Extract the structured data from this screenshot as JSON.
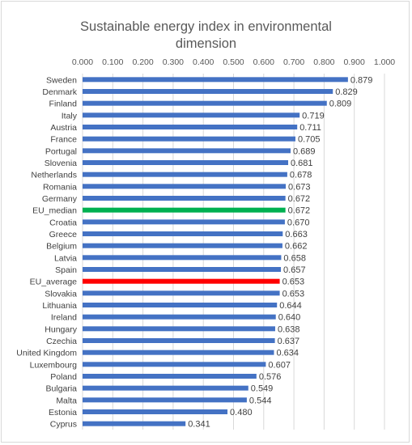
{
  "chart_data": {
    "type": "bar",
    "orientation": "horizontal",
    "title_lines": [
      "Sustainable energy index in environmental",
      "dimension"
    ],
    "x_axis_position": "top",
    "xlim": [
      0,
      1
    ],
    "x_ticks": [
      "0.000",
      "0.100",
      "0.200",
      "0.300",
      "0.400",
      "0.500",
      "0.600",
      "0.700",
      "0.800",
      "0.900",
      "1.000"
    ],
    "grid": true,
    "legend": "none",
    "colors": {
      "default": "#4472c4",
      "EU_median": "#00b050",
      "EU_average": "#ff0000"
    },
    "categories": [
      "Sweden",
      "Denmark",
      "Finland",
      "Italy",
      "Austria",
      "France",
      "Portugal",
      "Slovenia",
      "Netherlands",
      "Romania",
      "Germany",
      "EU_median",
      "Croatia",
      "Greece",
      "Belgium",
      "Latvia",
      "Spain",
      "EU_average",
      "Slovakia",
      "Lithuania",
      "Ireland",
      "Hungary",
      "Czechia",
      "United Kingdom",
      "Luxembourg",
      "Poland",
      "Bulgaria",
      "Malta",
      "Estonia",
      "Cyprus"
    ],
    "values": [
      0.879,
      0.829,
      0.809,
      0.719,
      0.711,
      0.705,
      0.689,
      0.681,
      0.678,
      0.673,
      0.672,
      0.672,
      0.67,
      0.663,
      0.662,
      0.658,
      0.657,
      0.653,
      0.653,
      0.644,
      0.64,
      0.638,
      0.637,
      0.634,
      0.607,
      0.576,
      0.549,
      0.544,
      0.48,
      0.341
    ],
    "value_labels": [
      "0.879",
      "0.829",
      "0.809",
      "0.719",
      "0.711",
      "0.705",
      "0.689",
      "0.681",
      "0.678",
      "0.673",
      "0.672",
      "0.672",
      "0.670",
      "0.663",
      "0.662",
      "0.658",
      "0.657",
      "0.653",
      "0.653",
      "0.644",
      "0.640",
      "0.638",
      "0.637",
      "0.634",
      "0.607",
      "0.576",
      "0.549",
      "0.544",
      "0.480",
      "0.341"
    ]
  }
}
